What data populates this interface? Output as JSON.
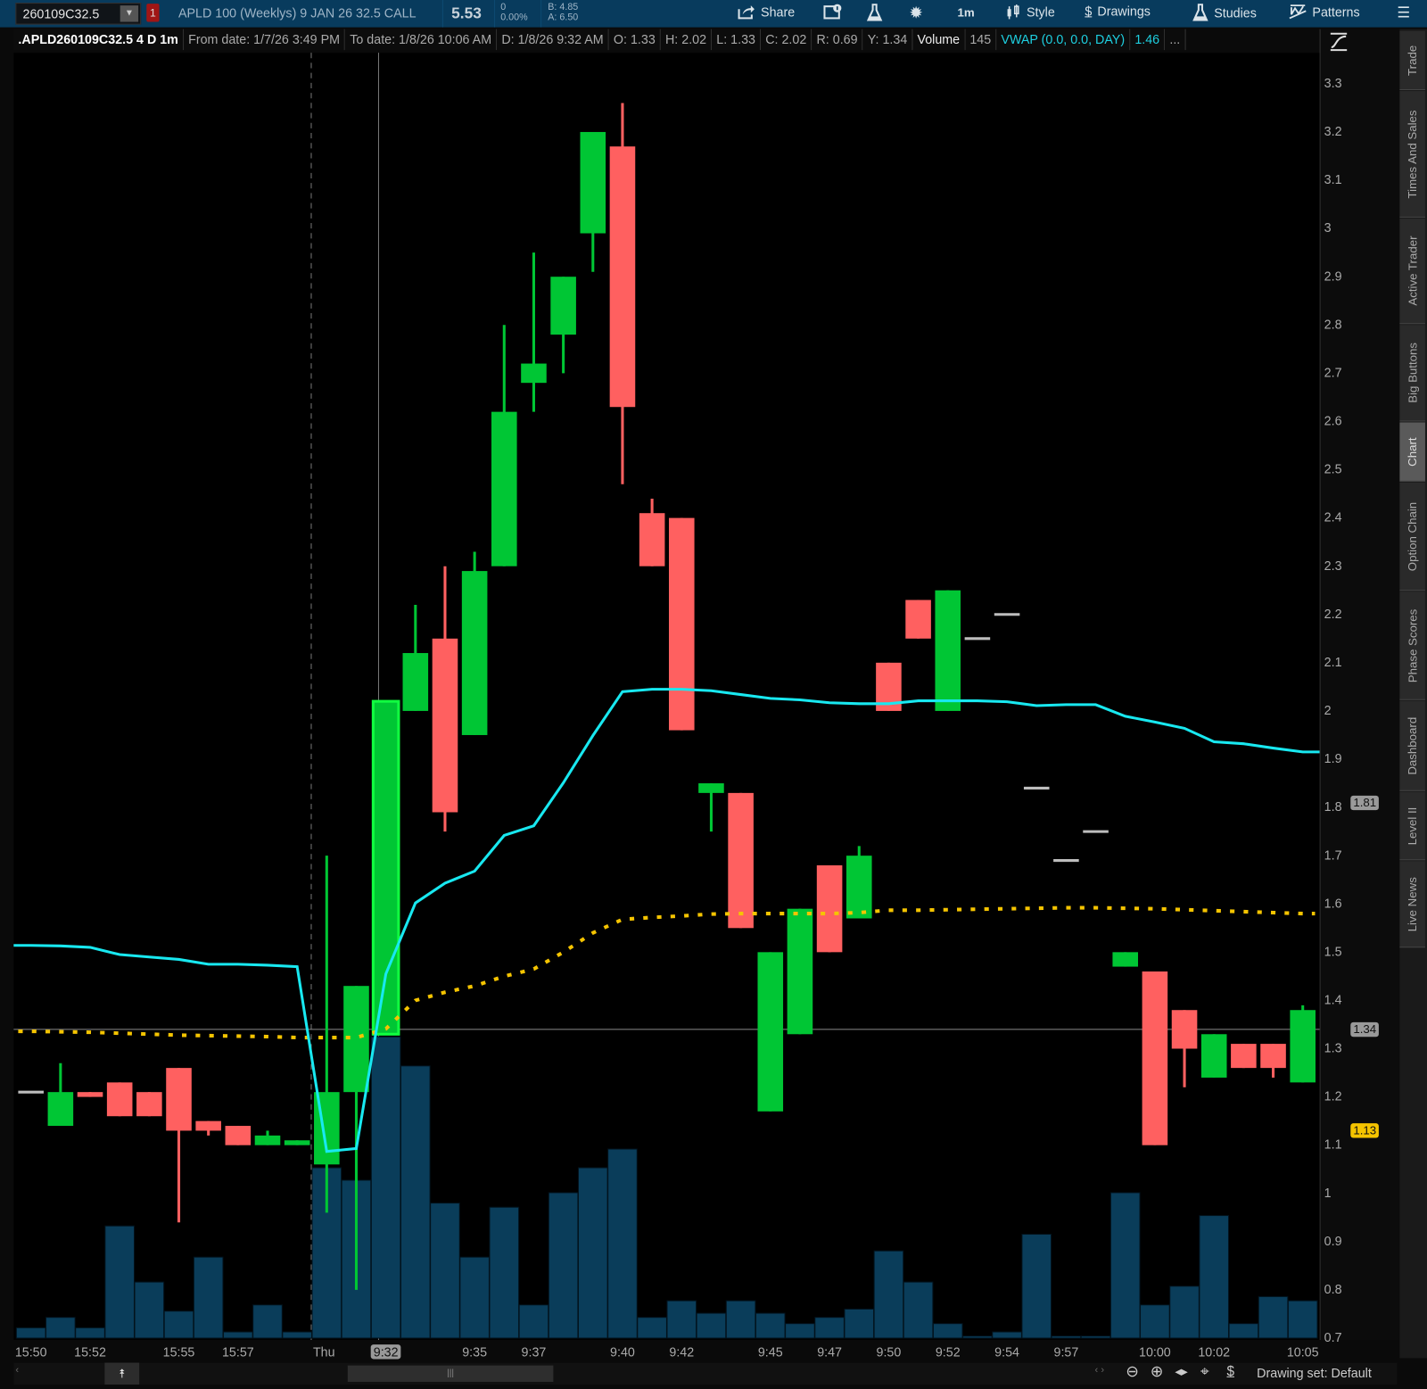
{
  "topbar": {
    "symbol": "260109C32.5",
    "alert_badge": "1",
    "description": "APLD 100 (Weeklys) 9 JAN 26 32.5 CALL",
    "last": "5.53",
    "change": "0",
    "change_pct": "0.00%",
    "bid": "B: 4.85",
    "ask": "A: 6.50",
    "buttons": {
      "share": "Share",
      "timeframe": "1m",
      "style": "Style",
      "drawings": "Drawings",
      "studies": "Studies",
      "patterns": "Patterns"
    }
  },
  "infobar": {
    "title": ".APLD260109C32.5 4 D 1m",
    "from": "From date: 1/7/26 3:49 PM",
    "to": "To date: 1/8/26 10:06 AM",
    "d": "D: 1/8/26 9:32 AM",
    "o": "O: 1.33",
    "h": "H: 2.02",
    "l": "L: 1.33",
    "c": "C: 2.02",
    "r": "R: 0.69",
    "y": "Y: 1.34",
    "volume_label": "Volume",
    "volume_value": "145",
    "vwap_label": "VWAP (0.0, 0.0, DAY)",
    "vwap_value": "1.46",
    "more": "..."
  },
  "sidebar": {
    "tabs": [
      "Trade",
      "Times And Sales",
      "Active Trader",
      "Big Buttons",
      "Chart",
      "Option Chain",
      "Phase Scores",
      "Dashboard",
      "Level II",
      "Live News"
    ],
    "selected": "Chart"
  },
  "bottom": {
    "drawing_set": "Drawing set: Default"
  },
  "colors": {
    "up": "#00c634",
    "down": "#ff6060",
    "volume": "#0a3d5a",
    "vwap": "#18e8f0",
    "study": "#f5c400",
    "topbar": "#083b5d"
  },
  "chart_data": {
    "type": "candlestick",
    "x": [
      "15:50",
      "15:51",
      "15:52",
      "15:53",
      "15:54",
      "15:55",
      "15:56",
      "15:57",
      "15:58",
      "15:59",
      "9:30",
      "9:31",
      "9:32",
      "9:33",
      "9:34",
      "9:35",
      "9:36",
      "9:37",
      "9:38",
      "9:39",
      "9:40",
      "9:41",
      "9:42",
      "9:43",
      "9:44",
      "9:45",
      "9:46",
      "9:47",
      "9:48",
      "9:50",
      "9:51",
      "9:52",
      "9:53",
      "9:54",
      "9:55",
      "9:57",
      "9:58",
      "9:59",
      "10:00",
      "10:01",
      "10:02",
      "10:03",
      "10:04",
      "10:05"
    ],
    "open": [
      1.21,
      1.14,
      1.21,
      1.23,
      1.21,
      1.26,
      1.15,
      1.14,
      1.1,
      1.1,
      1.06,
      1.21,
      1.33,
      2.0,
      2.15,
      1.95,
      2.3,
      2.68,
      2.78,
      2.99,
      3.17,
      2.41,
      2.4,
      1.83,
      1.83,
      1.17,
      1.33,
      1.68,
      1.57,
      2.1,
      2.23,
      2.0,
      2.15,
      2.2,
      1.84,
      1.69,
      1.75,
      1.47,
      1.46,
      1.38,
      1.24,
      1.31,
      1.31,
      1.23
    ],
    "high": [
      1.21,
      1.27,
      1.21,
      1.23,
      1.21,
      1.26,
      1.15,
      1.14,
      1.13,
      1.11,
      1.7,
      1.43,
      2.02,
      2.22,
      2.3,
      2.33,
      2.8,
      2.95,
      2.9,
      3.2,
      3.26,
      2.44,
      2.4,
      1.85,
      1.83,
      1.5,
      1.59,
      1.68,
      1.72,
      2.1,
      2.23,
      2.25,
      2.15,
      2.2,
      1.84,
      1.69,
      1.75,
      1.5,
      1.46,
      1.38,
      1.33,
      1.31,
      1.31,
      1.39
    ],
    "low": [
      1.21,
      1.14,
      1.2,
      1.16,
      1.16,
      0.94,
      1.12,
      1.1,
      1.1,
      1.1,
      0.96,
      0.8,
      1.33,
      2.0,
      1.75,
      1.95,
      2.3,
      2.62,
      2.7,
      2.91,
      2.47,
      2.3,
      1.96,
      1.75,
      1.55,
      1.17,
      1.33,
      1.5,
      1.57,
      2.0,
      2.15,
      2.0,
      2.15,
      2.2,
      1.84,
      1.69,
      1.75,
      1.47,
      1.1,
      1.22,
      1.24,
      1.26,
      1.24,
      1.23
    ],
    "close": [
      1.21,
      1.21,
      1.2,
      1.16,
      1.16,
      1.13,
      1.13,
      1.1,
      1.12,
      1.11,
      1.21,
      1.43,
      2.02,
      2.12,
      1.79,
      2.29,
      2.62,
      2.72,
      2.9,
      3.2,
      2.63,
      2.3,
      1.96,
      1.85,
      1.55,
      1.5,
      1.59,
      1.5,
      1.7,
      2.0,
      2.15,
      2.25,
      2.15,
      2.2,
      1.84,
      1.69,
      1.75,
      1.5,
      1.1,
      1.3,
      1.33,
      1.26,
      1.26,
      1.38
    ],
    "volume": [
      5,
      10,
      5,
      54,
      27,
      13,
      39,
      3,
      16,
      3,
      82,
      76,
      145,
      131,
      65,
      39,
      63,
      16,
      70,
      82,
      91,
      10,
      18,
      12,
      18,
      12,
      7,
      10,
      14,
      42,
      27,
      7,
      1,
      3,
      50,
      1,
      1,
      70,
      16,
      25,
      59,
      7,
      20,
      18
    ],
    "series": [
      {
        "label_in_header": "VWAP (0.0, 0.0, DAY)",
        "values": [
          1.514,
          1.513,
          1.51,
          1.495,
          1.49,
          1.485,
          1.475,
          1.475,
          1.473,
          1.47,
          1.087,
          1.093,
          1.455,
          1.602,
          1.643,
          1.668,
          1.742,
          1.762,
          1.851,
          1.949,
          2.04,
          2.045,
          2.045,
          2.042,
          2.034,
          2.026,
          2.023,
          2.017,
          2.015,
          2.015,
          2.021,
          2.021,
          2.021,
          2.019,
          2.011,
          2.013,
          2.013,
          1.989,
          1.977,
          1.964,
          1.936,
          1.932,
          1.923,
          1.915
        ]
      },
      {
        "values": [
          1.336,
          1.335,
          1.334,
          1.332,
          1.33,
          1.328,
          1.327,
          1.326,
          1.325,
          1.323,
          1.323,
          1.323,
          1.341,
          1.4,
          1.417,
          1.43,
          1.45,
          1.465,
          1.5,
          1.54,
          1.568,
          1.572,
          1.575,
          1.579,
          1.58,
          1.58,
          1.58,
          1.58,
          1.582,
          1.587,
          1.587,
          1.588,
          1.589,
          1.59,
          1.591,
          1.592,
          1.592,
          1.591,
          1.59,
          1.588,
          1.586,
          1.584,
          1.582,
          1.58
        ]
      }
    ],
    "y_ticks": [
      "3.3",
      "3.2",
      "3.1",
      "3",
      "2.9",
      "2.8",
      "2.7",
      "2.6",
      "2.5",
      "2.4",
      "2.3",
      "2.2",
      "2.1",
      "2",
      "1.9",
      "1.8",
      "1.7",
      "1.6",
      "1.5",
      "1.4",
      "1.3",
      "1.2",
      "1.1",
      "1",
      "0.9",
      "0.8",
      "0.7"
    ],
    "ylim": [
      0.7,
      3.35
    ],
    "x_ticks": [
      "15:50",
      "15:52",
      "15:55",
      "15:57",
      "Thu",
      "9:32",
      "9:35",
      "9:37",
      "9:40",
      "9:42",
      "9:45",
      "9:47",
      "9:50",
      "9:52",
      "9:54",
      "9:57",
      "10:00",
      "10:02",
      "10:05"
    ],
    "x_tick_at": [
      "15:50",
      "15:52",
      "15:55",
      "15:57",
      "9:30",
      "9:32",
      "9:35",
      "9:37",
      "9:40",
      "9:42",
      "9:45",
      "9:47",
      "9:50",
      "9:52",
      "9:54",
      "9:57",
      "10:00",
      "10:02",
      "10:05"
    ],
    "highlighted_x": "9:32",
    "price_markers": [
      {
        "value": "1.81",
        "color": "#9a9a9a"
      },
      {
        "value": "1.34",
        "color": "#9a9a9a"
      },
      {
        "value": "1.13",
        "color": "#f5c400"
      }
    ],
    "crosshair_price": 1.34
  }
}
